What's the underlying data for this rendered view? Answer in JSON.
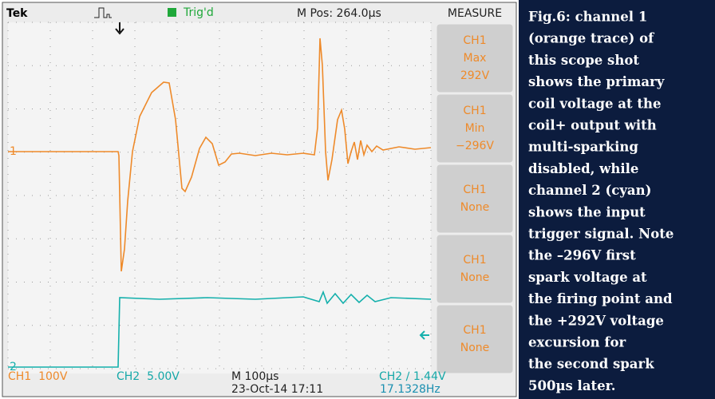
{
  "header": {
    "brand": "Tek",
    "trigger_status": "Trig'd",
    "m_pos": "M Pos: 264.0µs",
    "menu_title": "MEASURE"
  },
  "measurements": [
    {
      "channel": "CH1",
      "type": "Max",
      "value": "292V"
    },
    {
      "channel": "CH1",
      "type": "Min",
      "value": "−296V"
    },
    {
      "channel": "CH1",
      "type": "None"
    },
    {
      "channel": "CH1",
      "type": "None"
    },
    {
      "channel": "CH1",
      "type": "None"
    }
  ],
  "markers": {
    "ch1": "1",
    "ch2": "2"
  },
  "footer": {
    "ch1_scale": "CH1  100V",
    "ch2_scale": "CH2  5.00V",
    "timebase": "M 100µs",
    "trigger": "CH2 ∕ 1.44V",
    "datetime": "23-Oct-14 17:11",
    "frequency": "17.1328Hz"
  },
  "caption": [
    "Fig.6: channel 1",
    "(orange trace) of",
    "this scope shot",
    "shows the primary",
    "coil voltage at the",
    "coil+ output with",
    "multi-sparking",
    "disabled, while",
    "channel 2 (cyan)",
    "shows the input",
    "trigger signal. Note",
    "the –296V first",
    "spark voltage at",
    "the firing point and",
    "the +292V voltage",
    "excursion for",
    "the second spark",
    "500µs later."
  ]
}
